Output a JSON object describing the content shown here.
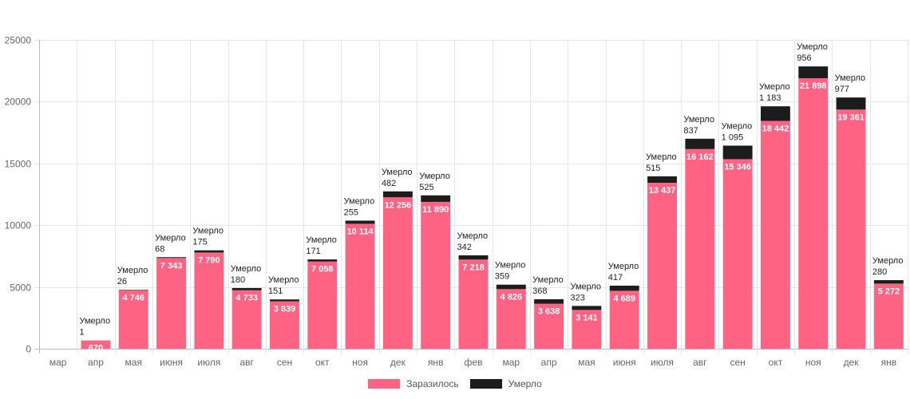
{
  "chart_data": {
    "type": "bar",
    "stacked": true,
    "categories": [
      "мар",
      "апр",
      "мая",
      "июня",
      "июля",
      "авг",
      "сен",
      "окт",
      "ноя",
      "дек",
      "янв",
      "фев",
      "мар",
      "апр",
      "мая",
      "июня",
      "июля",
      "авг",
      "сен",
      "окт",
      "ноя",
      "дек",
      "янв"
    ],
    "series": [
      {
        "name": "Заразилось",
        "color": "#ff6384",
        "values": [
          0,
          670,
          4746,
          7343,
          7790,
          4733,
          3839,
          7058,
          10114,
          12256,
          11890,
          7218,
          4826,
          3638,
          3141,
          4689,
          13437,
          16162,
          15346,
          18442,
          21898,
          19361,
          5272
        ],
        "labels": [
          "",
          "670",
          "4 746",
          "7 343",
          "7 790",
          "4 733",
          "3 839",
          "7 058",
          "10 114",
          "12 256",
          "11 890",
          "7 218",
          "4 826",
          "3 638",
          "3 141",
          "4 689",
          "13 437",
          "16 162",
          "15 346",
          "18 442",
          "21 898",
          "19 361",
          "5 272"
        ]
      },
      {
        "name": "Умерло",
        "color": "#1c1c1c",
        "values": [
          0,
          1,
          26,
          68,
          175,
          180,
          151,
          171,
          255,
          482,
          525,
          342,
          359,
          368,
          323,
          417,
          515,
          837,
          1095,
          1183,
          956,
          977,
          280
        ],
        "labels": [
          "",
          "1",
          "26",
          "68",
          "175",
          "180",
          "151",
          "171",
          "255",
          "482",
          "525",
          "342",
          "359",
          "368",
          "323",
          "417",
          "515",
          "837",
          "1 095",
          "1 183",
          "956",
          "977",
          "280"
        ],
        "label_prefix": "Умерло"
      }
    ],
    "y_ticks": [
      "0",
      "5000",
      "10000",
      "15000",
      "20000",
      "25000"
    ],
    "ylim": [
      0,
      25000
    ],
    "grid": true,
    "legend_position": "bottom"
  }
}
